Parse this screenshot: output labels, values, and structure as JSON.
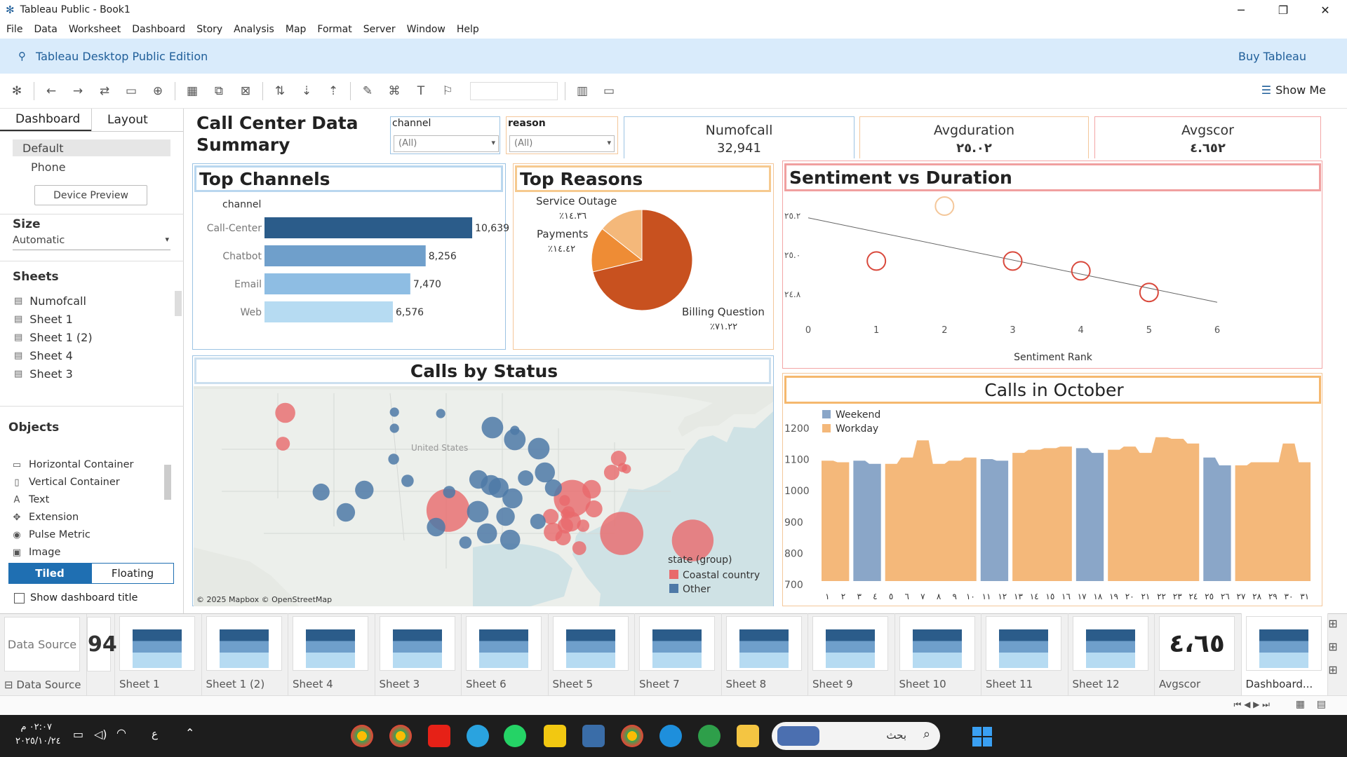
{
  "window": {
    "title": "Tableau Public - Book1",
    "min": "─",
    "max": "❐",
    "close": "✕"
  },
  "menu": [
    "File",
    "Data",
    "Worksheet",
    "Dashboard",
    "Story",
    "Analysis",
    "Map",
    "Format",
    "Server",
    "Window",
    "Help"
  ],
  "edition": {
    "label": "Tableau Desktop Public Edition",
    "buy": "Buy Tableau"
  },
  "toolbar": {
    "show_me": "Show Me"
  },
  "left": {
    "tabs": [
      "Dashboard",
      "Layout"
    ],
    "device_options": [
      "Default",
      "Phone"
    ],
    "device_preview": "Device Preview",
    "size_label": "Size",
    "size_value": "Automatic",
    "sheets_label": "Sheets",
    "sheets": [
      "Numofcall",
      "Sheet 1",
      "Sheet 1 (2)",
      "Sheet 4",
      "Sheet 3"
    ],
    "objects_label": "Objects",
    "objects": [
      "Horizontal Container",
      "Vertical Container",
      "Text",
      "Extension",
      "Pulse Metric",
      "Image"
    ],
    "tiled": "Tiled",
    "floating": "Floating",
    "show_title": "Show dashboard title"
  },
  "dashboard": {
    "title_line1": "Call Center Data",
    "title_line2": "Summary",
    "filter_channel": {
      "label": "channel",
      "value": "(All)"
    },
    "filter_reason": {
      "label": "reason",
      "value": "(All)"
    },
    "kpis": [
      {
        "label": "Numofcall",
        "value": "32,941"
      },
      {
        "label": "Avgduration",
        "value": "٢٥.٠٢"
      },
      {
        "label": "Avgscor",
        "value": "٤.٦٥٢"
      }
    ],
    "top_channels": {
      "title": "Top Channels",
      "header": "channel"
    },
    "top_reasons": {
      "title": "Top Reasons",
      "labels": [
        {
          "name": "Service Outage",
          "pct": "٪١٤.٣٦"
        },
        {
          "name": "Payments",
          "pct": "٪١٤.٤٢"
        },
        {
          "name": "Billing Question",
          "pct": "٪٧١.٢٢"
        }
      ]
    },
    "sentiment": {
      "title": "Sentiment vs Duration",
      "xlabel": "Sentiment Rank",
      "yticks": [
        "٢٥.٢",
        "٢٥.٠",
        "٢٤.٨"
      ],
      "xticks": [
        "0",
        "1",
        "2",
        "3",
        "4",
        "5",
        "6"
      ]
    },
    "map": {
      "title": "Calls by Status",
      "country": "United States",
      "credit": "© 2025 Mapbox © OpenStreetMap",
      "legend_title": "state (group)",
      "legend": [
        "Coastal country",
        "Other"
      ]
    },
    "october": {
      "title": "Calls in October",
      "legend": [
        "Weekend",
        "Workday"
      ],
      "yticks": [
        "1200",
        "1100",
        "1000",
        "900",
        "800",
        "700"
      ],
      "days": [
        "١",
        "٢",
        "٣",
        "٤",
        "٥",
        "٦",
        "٧",
        "٨",
        "٩",
        "١٠",
        "١١",
        "١٢",
        "١٣",
        "١٤",
        "١٥",
        "١٦",
        "١٧",
        "١٨",
        "١٩",
        "٢٠",
        "٢١",
        "٢٢",
        "٢٣",
        "٢٤",
        "٢٥",
        "٢٦",
        "٢٧",
        "٢٨",
        "٢٩",
        "٣٠",
        "٣١"
      ]
    }
  },
  "colors": {
    "accent": "#1f5e99",
    "blue_dark": "#2b5c8a",
    "coastal": "#e8696b",
    "other": "#4e79a7",
    "workday": "#f4b87a",
    "weekend": "#8aa6c8",
    "pie_main": "#c8511f"
  },
  "chart_data": [
    {
      "type": "bar",
      "title": "Top Channels",
      "categories": [
        "Call-Center",
        "Chatbot",
        "Email",
        "Web"
      ],
      "values": [
        10639,
        8256,
        7470,
        6576
      ],
      "value_labels": [
        "10,639",
        "8,256",
        "7,470",
        "6,576"
      ]
    },
    {
      "type": "pie",
      "title": "Top Reasons",
      "categories": [
        "Billing Question",
        "Service Outage",
        "Payments"
      ],
      "values": [
        71.22,
        14.36,
        14.42
      ]
    },
    {
      "type": "scatter",
      "title": "Sentiment vs Duration",
      "xlabel": "Sentiment Rank",
      "x": [
        1,
        2,
        3,
        4,
        5
      ],
      "y": [
        24.97,
        25.25,
        24.97,
        24.92,
        24.81
      ],
      "xlim": [
        0,
        6
      ],
      "trend_line": true
    },
    {
      "type": "area",
      "title": "Calls in October",
      "x": [
        1,
        2,
        3,
        4,
        5,
        6,
        7,
        8,
        9,
        10,
        11,
        12,
        13,
        14,
        15,
        16,
        17,
        18,
        19,
        20,
        21,
        22,
        23,
        24,
        25,
        26,
        27,
        28,
        29,
        30,
        31
      ],
      "series": [
        {
          "name": "Workday",
          "values": [
            1085,
            1080,
            null,
            null,
            1075,
            1095,
            1150,
            1075,
            1085,
            1095,
            null,
            null,
            1110,
            1120,
            1125,
            1130,
            null,
            null,
            1120,
            1130,
            1110,
            1160,
            1155,
            1140,
            null,
            null,
            1070,
            1080,
            1080,
            1140,
            1080
          ]
        },
        {
          "name": "Weekend",
          "values": [
            null,
            null,
            1085,
            1075,
            null,
            null,
            null,
            null,
            null,
            null,
            1090,
            1085,
            null,
            null,
            null,
            null,
            1125,
            1110,
            null,
            null,
            null,
            null,
            null,
            null,
            1095,
            1070,
            null,
            null,
            null,
            null,
            null
          ]
        }
      ],
      "ylim": [
        700,
        1200
      ]
    }
  ],
  "tabs": [
    "Data Source",
    "",
    "Sheet 1",
    "Sheet 1 (2)",
    "Sheet 4",
    "Sheet 3",
    "Sheet 6",
    "Sheet 5",
    "Sheet 7",
    "Sheet 8",
    "Sheet 9",
    "Sheet 10",
    "Sheet 11",
    "Sheet 12",
    "Avgscor",
    "Dashboard..."
  ],
  "taskbar": {
    "time": "٠٢:٠٧ م",
    "date": "٢٠٢٥/١٠/٢٤",
    "search": "بحث",
    "lang": "ع"
  }
}
